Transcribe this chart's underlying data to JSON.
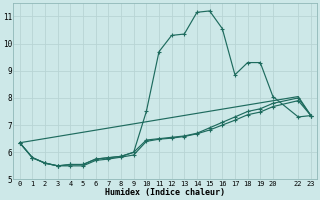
{
  "xlabel": "Humidex (Indice chaleur)",
  "bg_color": "#cde8e8",
  "grid_color": "#b8d4d4",
  "line_color": "#1e6b5e",
  "xlim": [
    -0.5,
    23.5
  ],
  "ylim": [
    5.0,
    11.5
  ],
  "yticks": [
    5,
    6,
    7,
    8,
    9,
    10,
    11
  ],
  "xtick_positions": [
    0,
    1,
    2,
    3,
    4,
    5,
    6,
    7,
    8,
    9,
    10,
    11,
    12,
    13,
    14,
    15,
    16,
    17,
    18,
    19,
    20,
    22,
    23
  ],
  "xtick_labels": [
    "0",
    "1",
    "2",
    "3",
    "4",
    "5",
    "6",
    "7",
    "8",
    "9",
    "10",
    "11",
    "12",
    "13",
    "14",
    "15",
    "16",
    "17",
    "18",
    "19",
    "20",
    "22",
    "23"
  ],
  "line1_x": [
    0,
    1,
    2,
    3,
    4,
    5,
    6,
    7,
    8,
    9,
    10,
    11,
    12,
    13,
    14,
    15,
    16,
    17,
    18,
    19,
    20,
    22,
    23
  ],
  "line1_y": [
    6.35,
    5.8,
    5.6,
    5.5,
    5.55,
    5.55,
    5.75,
    5.8,
    5.85,
    6.0,
    7.5,
    9.7,
    10.3,
    10.35,
    11.15,
    11.2,
    10.55,
    8.85,
    9.3,
    9.3,
    8.05,
    7.3,
    7.35
  ],
  "line2_x": [
    0,
    1,
    2,
    3,
    4,
    5,
    6,
    7,
    8,
    9,
    10,
    11,
    12,
    13,
    14,
    15,
    16,
    17,
    18,
    19,
    20,
    22,
    23
  ],
  "line2_y": [
    6.35,
    5.8,
    5.6,
    5.5,
    5.55,
    5.55,
    5.75,
    5.8,
    5.85,
    6.0,
    6.45,
    6.5,
    6.55,
    6.6,
    6.7,
    6.9,
    7.1,
    7.3,
    7.5,
    7.6,
    7.8,
    8.0,
    7.35
  ],
  "line3_x": [
    0,
    1,
    2,
    3,
    4,
    5,
    6,
    7,
    8,
    9,
    10,
    11,
    12,
    13,
    14,
    15,
    16,
    17,
    18,
    19,
    20,
    22,
    23
  ],
  "line3_y": [
    6.35,
    5.8,
    5.6,
    5.5,
    5.5,
    5.5,
    5.7,
    5.75,
    5.82,
    5.9,
    6.4,
    6.48,
    6.52,
    6.58,
    6.68,
    6.82,
    7.0,
    7.18,
    7.38,
    7.48,
    7.68,
    7.9,
    7.35
  ],
  "line4_x": [
    0,
    22,
    23
  ],
  "line4_y": [
    6.35,
    8.05,
    7.35
  ]
}
